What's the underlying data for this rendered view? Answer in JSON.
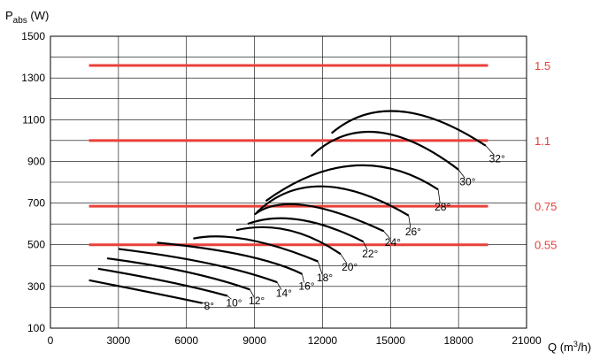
{
  "chart_data": {
    "type": "line",
    "title": "",
    "ylabel": {
      "main": "P",
      "sub": "abs",
      "unit": " (W)"
    },
    "xlabel": {
      "main": "Q (m",
      "sup": "3",
      "unit": "/h)"
    },
    "xlim": [
      0,
      21000
    ],
    "ylim": [
      100,
      1500
    ],
    "x_ticks": [
      0,
      3000,
      6000,
      9000,
      12000,
      15000,
      18000,
      21000
    ],
    "x_tick_labels": [
      "0",
      "3000",
      "6000",
      "9000",
      "12000",
      "15000",
      "18000",
      "21000"
    ],
    "y_ticks": [
      100,
      300,
      500,
      700,
      900,
      1100,
      1300,
      1500
    ],
    "y_tick_labels": [
      "100",
      "300",
      "500",
      "700",
      "900",
      "1100",
      "1300",
      "1500"
    ],
    "grid": true,
    "reference_lines": [
      {
        "label": "1.5",
        "y": 1360,
        "x_start": 1700,
        "x_end": 19300,
        "color": "#e8413a"
      },
      {
        "label": "1.1",
        "y": 1000,
        "x_start": 1700,
        "x_end": 19300,
        "color": "#e8413a"
      },
      {
        "label": "0.75",
        "y": 685,
        "x_start": 1700,
        "x_end": 19300,
        "color": "#e8413a"
      },
      {
        "label": "0.55",
        "y": 500,
        "x_start": 1700,
        "x_end": 19300,
        "color": "#e8413a"
      }
    ],
    "series": [
      {
        "name": "8°",
        "points": [
          [
            1700,
            330
          ],
          [
            4700,
            265
          ],
          [
            6700,
            220
          ]
        ],
        "label_at": [
          7000,
          190
        ]
      },
      {
        "name": "10°",
        "points": [
          [
            2100,
            385
          ],
          [
            5300,
            320
          ],
          [
            7800,
            255
          ]
        ],
        "label_at": [
          8100,
          205
        ]
      },
      {
        "name": "12°",
        "points": [
          [
            2500,
            435
          ],
          [
            6000,
            370
          ],
          [
            8800,
            285
          ]
        ],
        "label_at": [
          9100,
          215
        ]
      },
      {
        "name": "14°",
        "points": [
          [
            3000,
            480
          ],
          [
            7000,
            410
          ],
          [
            10000,
            320
          ]
        ],
        "label_at": [
          10300,
          250
        ]
      },
      {
        "name": "16°",
        "points": [
          [
            4700,
            510
          ],
          [
            8500,
            450
          ],
          [
            11100,
            360
          ]
        ],
        "label_at": [
          11300,
          285
        ]
      },
      {
        "name": "18°",
        "points": [
          [
            6300,
            530
          ],
          [
            8700,
            525
          ],
          [
            11800,
            420
          ]
        ],
        "label_at": [
          12100,
          325
        ]
      },
      {
        "name": "20°",
        "points": [
          [
            8200,
            570
          ],
          [
            10500,
            570
          ],
          [
            12800,
            455
          ]
        ],
        "label_at": [
          13200,
          375
        ]
      },
      {
        "name": "22°",
        "points": [
          [
            8700,
            600
          ],
          [
            11000,
            620
          ],
          [
            13800,
            515
          ]
        ],
        "label_at": [
          14100,
          440
        ]
      },
      {
        "name": "24°",
        "points": [
          [
            9000,
            645
          ],
          [
            11200,
            690
          ],
          [
            14700,
            565
          ]
        ],
        "label_at": [
          15100,
          495
        ]
      },
      {
        "name": "26°",
        "points": [
          [
            9100,
            655
          ],
          [
            12000,
            780
          ],
          [
            15800,
            640
          ]
        ],
        "label_at": [
          16000,
          545
        ]
      },
      {
        "name": "28°",
        "points": [
          [
            9500,
            710
          ],
          [
            13400,
            880
          ],
          [
            17100,
            765
          ]
        ],
        "label_at": [
          17300,
          665
        ]
      },
      {
        "name": "30°",
        "points": [
          [
            11500,
            925
          ],
          [
            14400,
            1040
          ],
          [
            18000,
            860
          ]
        ],
        "label_at": [
          18400,
          785
        ]
      },
      {
        "name": "32°",
        "points": [
          [
            12400,
            1035
          ],
          [
            15400,
            1140
          ],
          [
            19200,
            975
          ]
        ],
        "label_at": [
          19700,
          895
        ]
      }
    ]
  }
}
